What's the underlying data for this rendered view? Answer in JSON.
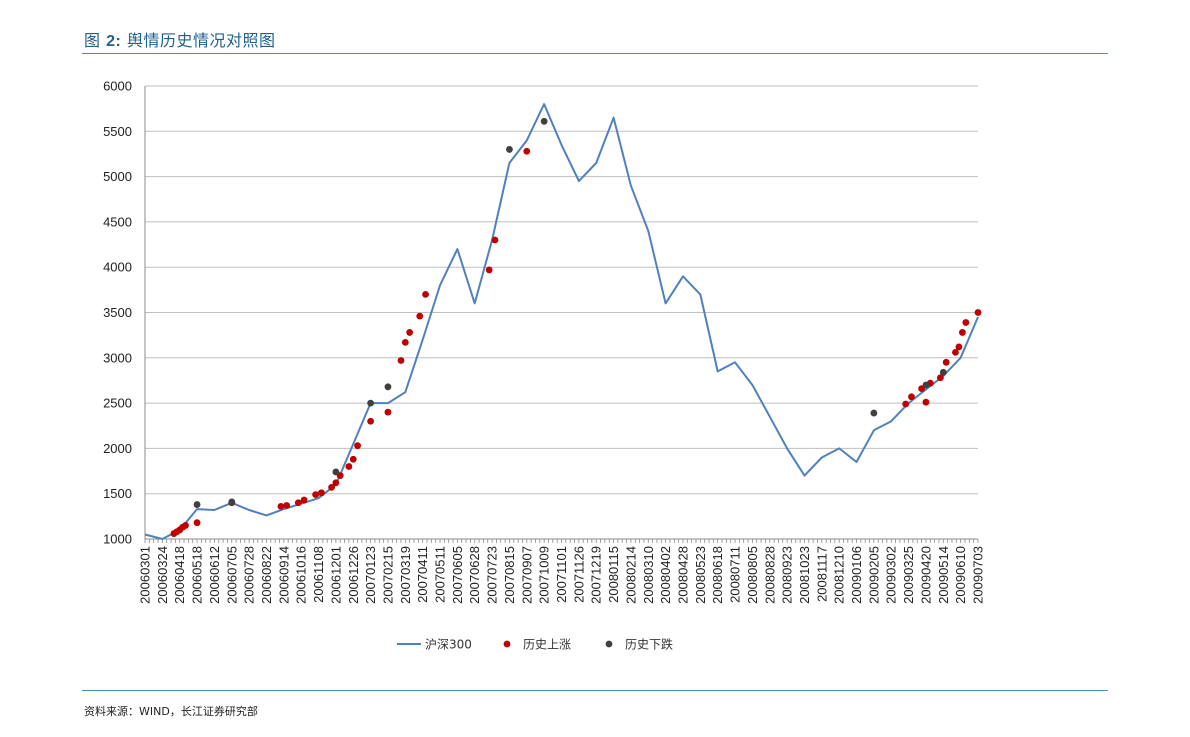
{
  "header": {
    "clipped_line": "",
    "figure_prefix": "图",
    "figure_number": "2:",
    "figure_title": "舆情历史情况对照图"
  },
  "footer": {
    "source": "资料来源：WIND，长江证券研究部"
  },
  "colors": {
    "line": "#4f81bd",
    "rise_marker": "#c00000",
    "fall_marker": "#404040",
    "title": "#1f5f8b",
    "rule": "#4f8fb0",
    "grid": "#bfbfbf"
  },
  "chart_data": {
    "type": "line",
    "title": "",
    "xlabel": "",
    "ylabel": "",
    "ylim": [
      1000,
      6000
    ],
    "yticks": [
      1000,
      1500,
      2000,
      2500,
      3000,
      3500,
      4000,
      4500,
      5000,
      5500,
      6000
    ],
    "grid": "horizontal",
    "legend_position": "bottom",
    "x_tick_labels": [
      "20060301",
      "20060324",
      "20060418",
      "20060518",
      "20060612",
      "20060705",
      "20060728",
      "20060822",
      "20060914",
      "20061016",
      "20061108",
      "20061201",
      "20061226",
      "20070123",
      "20070215",
      "20070319",
      "20070411",
      "20070511",
      "20070605",
      "20070628",
      "20070723",
      "20070815",
      "20070907",
      "20071009",
      "20071101",
      "20071126",
      "20071219",
      "20080115",
      "20080214",
      "20080310",
      "20080402",
      "20080428",
      "20080523",
      "20080618",
      "20080711",
      "20080805",
      "20080828",
      "20080923",
      "20081023",
      "20081117",
      "20081210",
      "20090106",
      "20090205",
      "20090302",
      "20090325",
      "20090420",
      "20090514",
      "20090610",
      "20090703"
    ],
    "series": [
      {
        "name": "沪深300",
        "kind": "line",
        "points": [
          [
            "20060301",
            1050
          ],
          [
            "20060324",
            1000
          ],
          [
            "20060418",
            1100
          ],
          [
            "20060518",
            1330
          ],
          [
            "20060612",
            1320
          ],
          [
            "20060705",
            1400
          ],
          [
            "20060728",
            1320
          ],
          [
            "20060822",
            1260
          ],
          [
            "20060914",
            1330
          ],
          [
            "20061016",
            1390
          ],
          [
            "20061108",
            1450
          ],
          [
            "20061201",
            1600
          ],
          [
            "20061226",
            2050
          ],
          [
            "20070123",
            2500
          ],
          [
            "20070215",
            2500
          ],
          [
            "20070319",
            2620
          ],
          [
            "20070411",
            3200
          ],
          [
            "20070511",
            3800
          ],
          [
            "20070605",
            4200
          ],
          [
            "20070628",
            3600
          ],
          [
            "20070723",
            4300
          ],
          [
            "20070815",
            5150
          ],
          [
            "20070907",
            5400
          ],
          [
            "20071009",
            5800
          ],
          [
            "20071101",
            5350
          ],
          [
            "20071126",
            4950
          ],
          [
            "20071219",
            5150
          ],
          [
            "20080115",
            5650
          ],
          [
            "20080214",
            4900
          ],
          [
            "20080310",
            4400
          ],
          [
            "20080402",
            3600
          ],
          [
            "20080428",
            3900
          ],
          [
            "20080523",
            3700
          ],
          [
            "20080618",
            2850
          ],
          [
            "20080711",
            2950
          ],
          [
            "20080805",
            2700
          ],
          [
            "20080828",
            2350
          ],
          [
            "20080923",
            2000
          ],
          [
            "20081023",
            1700
          ],
          [
            "20081117",
            1900
          ],
          [
            "20081210",
            2000
          ],
          [
            "20090106",
            1850
          ],
          [
            "20090205",
            2200
          ],
          [
            "20090302",
            2300
          ],
          [
            "20090325",
            2500
          ],
          [
            "20090420",
            2650
          ],
          [
            "20090514",
            2800
          ],
          [
            "20090610",
            3000
          ],
          [
            "20090703",
            3450
          ]
        ]
      },
      {
        "name": "历史上涨",
        "kind": "marker",
        "points": [
          [
            "20060418",
            1060
          ],
          [
            "20060418",
            1080
          ],
          [
            "20060418",
            1100
          ],
          [
            "20060418",
            1130
          ],
          [
            "20060418",
            1150
          ],
          [
            "20060518",
            1180
          ],
          [
            "20060705",
            1400
          ],
          [
            "20060914",
            1360
          ],
          [
            "20060914",
            1370
          ],
          [
            "20061016",
            1400
          ],
          [
            "20061016",
            1430
          ],
          [
            "20061108",
            1490
          ],
          [
            "20061108",
            1510
          ],
          [
            "20061201",
            1570
          ],
          [
            "20061201",
            1620
          ],
          [
            "20061201",
            1700
          ],
          [
            "20061226",
            1800
          ],
          [
            "20061226",
            1880
          ],
          [
            "20061226",
            2030
          ],
          [
            "20070123",
            2300
          ],
          [
            "20070215",
            2400
          ],
          [
            "20070319",
            2970
          ],
          [
            "20070319",
            3170
          ],
          [
            "20070319",
            3280
          ],
          [
            "20070411",
            3460
          ],
          [
            "20070411",
            3700
          ],
          [
            "20070723",
            3970
          ],
          [
            "20070723",
            4300
          ],
          [
            "20070907",
            5280
          ],
          [
            "20090325",
            2490
          ],
          [
            "20090325",
            2570
          ],
          [
            "20090420",
            2660
          ],
          [
            "20090420",
            2510
          ],
          [
            "20090420",
            2720
          ],
          [
            "20090514",
            2780
          ],
          [
            "20090514",
            2950
          ],
          [
            "20090610",
            3060
          ],
          [
            "20090610",
            3120
          ],
          [
            "20090610",
            3280
          ],
          [
            "20090610",
            3390
          ],
          [
            "20090703",
            3500
          ]
        ]
      },
      {
        "name": "历史下跌",
        "kind": "marker",
        "points": [
          [
            "20060518",
            1380
          ],
          [
            "20060705",
            1410
          ],
          [
            "20061201",
            1740
          ],
          [
            "20070123",
            2500
          ],
          [
            "20070215",
            2680
          ],
          [
            "20070815",
            5300
          ],
          [
            "20071009",
            5610
          ],
          [
            "20090205",
            2390
          ],
          [
            "20090420",
            2700
          ],
          [
            "20090514",
            2840
          ]
        ]
      }
    ]
  }
}
